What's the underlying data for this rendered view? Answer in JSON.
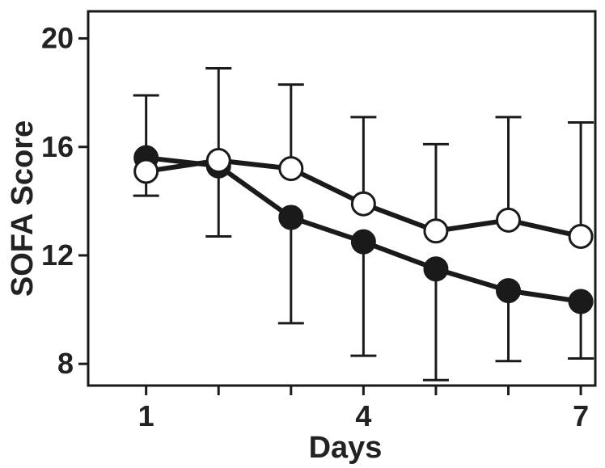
{
  "chart_data": {
    "type": "line",
    "xlabel": "Days",
    "ylabel": "SOFA Score",
    "x": [
      1,
      2,
      3,
      4,
      5,
      6,
      7
    ],
    "x_tick_labels": [
      "1",
      "4",
      "7"
    ],
    "x_tick_values": [
      1,
      4,
      7
    ],
    "y_ticks": [
      8,
      12,
      16,
      20
    ],
    "xlim": [
      0.2,
      7.2
    ],
    "ylim": [
      7.2,
      21.0
    ],
    "grid": false,
    "series": [
      {
        "marker": "filled-circle",
        "color": "#1a1a1a",
        "values": [
          15.6,
          15.3,
          13.4,
          12.5,
          11.5,
          10.7,
          10.3
        ],
        "error_low": [
          14.2,
          12.7,
          9.5,
          8.3,
          7.4,
          8.1,
          8.2
        ],
        "error_high": [
          null,
          null,
          null,
          null,
          null,
          null,
          null
        ]
      },
      {
        "marker": "open-circle",
        "color": "#1a1a1a",
        "values": [
          15.1,
          15.5,
          15.2,
          13.9,
          12.9,
          13.3,
          12.7
        ],
        "error_low": [
          null,
          null,
          null,
          null,
          null,
          null,
          null
        ],
        "error_high": [
          17.9,
          18.9,
          18.3,
          17.1,
          16.1,
          17.1,
          16.9
        ]
      }
    ]
  }
}
